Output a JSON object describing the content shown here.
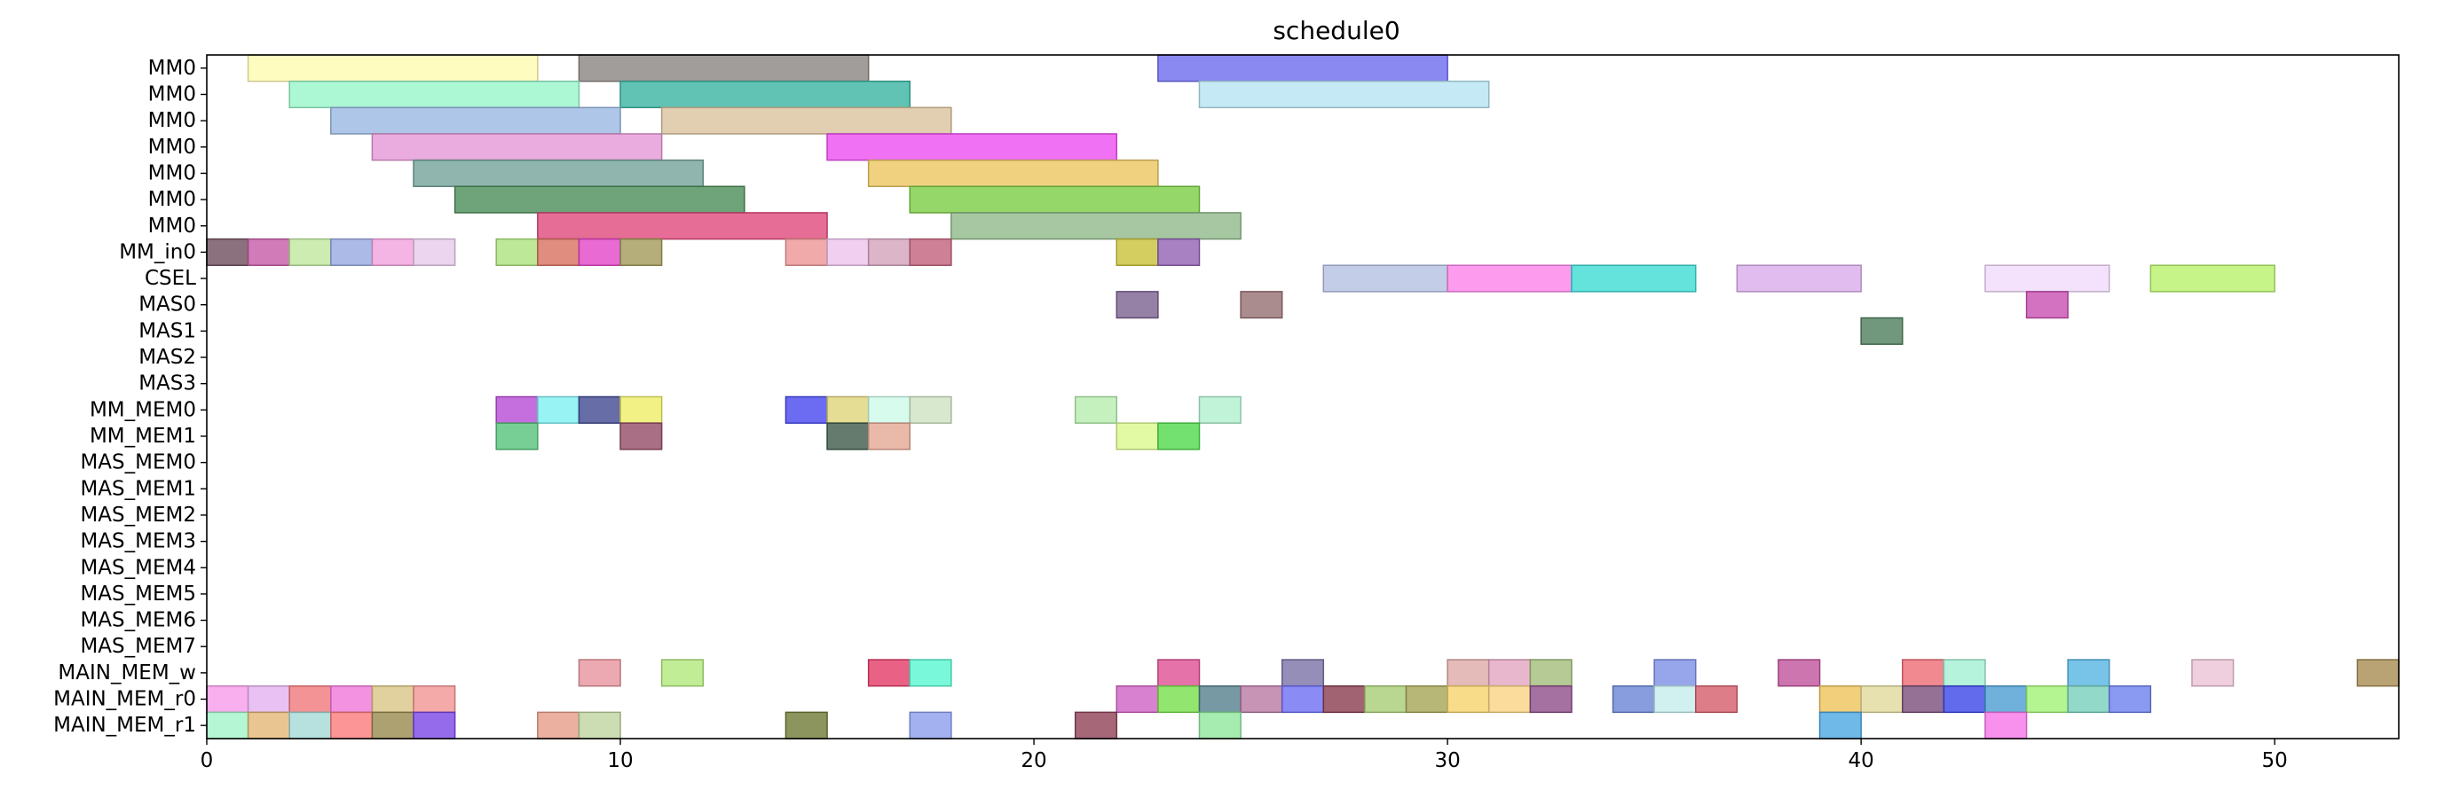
{
  "chart_data": {
    "type": "gantt",
    "title": "schedule0",
    "xlabel": "",
    "ylabel": "",
    "xlim": [
      0,
      53
    ],
    "x_ticks": [
      0,
      10,
      20,
      30,
      40,
      50
    ],
    "grid": false,
    "rows": [
      "MM0",
      "MM0",
      "MM0",
      "MM0",
      "MM0",
      "MM0",
      "MM0",
      "MM_in0",
      "CSEL",
      "MAS0",
      "MAS1",
      "MAS2",
      "MAS3",
      "MM_MEM0",
      "MM_MEM1",
      "MAS_MEM0",
      "MAS_MEM1",
      "MAS_MEM2",
      "MAS_MEM3",
      "MAS_MEM4",
      "MAS_MEM5",
      "MAS_MEM6",
      "MAS_MEM7",
      "MAIN_MEM_w",
      "MAIN_MEM_r0",
      "MAIN_MEM_r1"
    ],
    "bars": [
      {
        "row": 0,
        "start": 1,
        "end": 8,
        "color": "#fffbb0"
      },
      {
        "row": 0,
        "start": 9,
        "end": 16,
        "color": "#8a8582"
      },
      {
        "row": 0,
        "start": 23,
        "end": 30,
        "color": "#6b6bee"
      },
      {
        "row": 1,
        "start": 2,
        "end": 9,
        "color": "#97f5c9"
      },
      {
        "row": 1,
        "start": 10,
        "end": 17,
        "color": "#3ab4a0"
      },
      {
        "row": 1,
        "start": 24,
        "end": 31,
        "color": "#b8e5f3"
      },
      {
        "row": 2,
        "start": 3,
        "end": 10,
        "color": "#9ab8e1"
      },
      {
        "row": 2,
        "start": 11,
        "end": 18,
        "color": "#dbc29d"
      },
      {
        "row": 3,
        "start": 4,
        "end": 11,
        "color": "#e597d7"
      },
      {
        "row": 3,
        "start": 15,
        "end": 22,
        "color": "#ee4df3"
      },
      {
        "row": 4,
        "start": 5,
        "end": 12,
        "color": "#73a39a"
      },
      {
        "row": 4,
        "start": 16,
        "end": 23,
        "color": "#ebc560"
      },
      {
        "row": 5,
        "start": 6,
        "end": 13,
        "color": "#4b8c58"
      },
      {
        "row": 5,
        "start": 17,
        "end": 24,
        "color": "#7ccd43"
      },
      {
        "row": 6,
        "start": 8,
        "end": 15,
        "color": "#e0487a"
      },
      {
        "row": 6,
        "start": 18,
        "end": 25,
        "color": "#90b98a"
      },
      {
        "row": 7,
        "start": 0,
        "end": 1,
        "color": "#6e4e5e"
      },
      {
        "row": 7,
        "start": 1,
        "end": 2,
        "color": "#c55aa6"
      },
      {
        "row": 7,
        "start": 2,
        "end": 3,
        "color": "#bfe79d"
      },
      {
        "row": 7,
        "start": 3,
        "end": 4,
        "color": "#97a9e1"
      },
      {
        "row": 7,
        "start": 4,
        "end": 5,
        "color": "#f3a3dd"
      },
      {
        "row": 7,
        "start": 5,
        "end": 6,
        "color": "#e7cbea"
      },
      {
        "row": 7,
        "start": 7,
        "end": 8,
        "color": "#abe27d"
      },
      {
        "row": 7,
        "start": 8,
        "end": 9,
        "color": "#d87060"
      },
      {
        "row": 7,
        "start": 9,
        "end": 10,
        "color": "#e545c9"
      },
      {
        "row": 7,
        "start": 10,
        "end": 11,
        "color": "#a29a59"
      },
      {
        "row": 7,
        "start": 14,
        "end": 15,
        "color": "#ee9595"
      },
      {
        "row": 7,
        "start": 15,
        "end": 16,
        "color": "#ecc3ee"
      },
      {
        "row": 7,
        "start": 16,
        "end": 17,
        "color": "#d5a3bb"
      },
      {
        "row": 7,
        "start": 17,
        "end": 18,
        "color": "#c2627c"
      },
      {
        "row": 7,
        "start": 22,
        "end": 23,
        "color": "#c9c23a"
      },
      {
        "row": 7,
        "start": 23,
        "end": 24,
        "color": "#9161b3"
      },
      {
        "row": 8,
        "start": 27,
        "end": 30,
        "color": "#b5c1e1"
      },
      {
        "row": 8,
        "start": 30,
        "end": 33,
        "color": "#fd83ea"
      },
      {
        "row": 8,
        "start": 33,
        "end": 36,
        "color": "#3ddcd5"
      },
      {
        "row": 8,
        "start": 37,
        "end": 40,
        "color": "#d9adeb"
      },
      {
        "row": 8,
        "start": 43,
        "end": 46,
        "color": "#f1dafa"
      },
      {
        "row": 8,
        "start": 47,
        "end": 50,
        "color": "#b8f16b"
      },
      {
        "row": 9,
        "start": 22,
        "end": 23,
        "color": "#7b6090"
      },
      {
        "row": 9,
        "start": 25,
        "end": 26,
        "color": "#966f72"
      },
      {
        "row": 9,
        "start": 44,
        "end": 45,
        "color": "#c94fb3"
      },
      {
        "row": 10,
        "start": 40,
        "end": 41,
        "color": "#4e7e5c"
      },
      {
        "row": 13,
        "start": 7,
        "end": 8,
        "color": "#b74ad6"
      },
      {
        "row": 13,
        "start": 8,
        "end": 9,
        "color": "#7ef0f1"
      },
      {
        "row": 13,
        "start": 9,
        "end": 10,
        "color": "#414891"
      },
      {
        "row": 13,
        "start": 10,
        "end": 11,
        "color": "#eeee67"
      },
      {
        "row": 13,
        "start": 14,
        "end": 15,
        "color": "#4647ef"
      },
      {
        "row": 13,
        "start": 15,
        "end": 16,
        "color": "#e0d57a"
      },
      {
        "row": 13,
        "start": 16,
        "end": 17,
        "color": "#cdfbe8"
      },
      {
        "row": 13,
        "start": 17,
        "end": 18,
        "color": "#cde2c3"
      },
      {
        "row": 13,
        "start": 21,
        "end": 22,
        "color": "#b5eead"
      },
      {
        "row": 13,
        "start": 24,
        "end": 25,
        "color": "#b1f0ce"
      },
      {
        "row": 14,
        "start": 7,
        "end": 8,
        "color": "#55c37a"
      },
      {
        "row": 14,
        "start": 10,
        "end": 11,
        "color": "#944b66"
      },
      {
        "row": 14,
        "start": 15,
        "end": 16,
        "color": "#3f5a4a"
      },
      {
        "row": 14,
        "start": 16,
        "end": 17,
        "color": "#e3a795"
      },
      {
        "row": 14,
        "start": 22,
        "end": 23,
        "color": "#dbf98c"
      },
      {
        "row": 14,
        "start": 23,
        "end": 24,
        "color": "#4fd94b"
      },
      {
        "row": 23,
        "start": 9,
        "end": 10,
        "color": "#e7939d"
      },
      {
        "row": 23,
        "start": 11,
        "end": 12,
        "color": "#b2e87c"
      },
      {
        "row": 23,
        "start": 16,
        "end": 17,
        "color": "#e33b67"
      },
      {
        "row": 23,
        "start": 17,
        "end": 18,
        "color": "#59f7d1"
      },
      {
        "row": 23,
        "start": 23,
        "end": 24,
        "color": "#df4f94"
      },
      {
        "row": 23,
        "start": 26,
        "end": 27,
        "color": "#7a72a6"
      },
      {
        "row": 23,
        "start": 30,
        "end": 31,
        "color": "#ddaaa6"
      },
      {
        "row": 23,
        "start": 31,
        "end": 32,
        "color": "#e4a5c0"
      },
      {
        "row": 23,
        "start": 32,
        "end": 33,
        "color": "#a3bd7a"
      },
      {
        "row": 23,
        "start": 35,
        "end": 36,
        "color": "#7d90e6"
      },
      {
        "row": 23,
        "start": 38,
        "end": 39,
        "color": "#c0529b"
      },
      {
        "row": 23,
        "start": 41,
        "end": 42,
        "color": "#ee6c74"
      },
      {
        "row": 23,
        "start": 42,
        "end": 43,
        "color": "#a3f0d5"
      },
      {
        "row": 23,
        "start": 45,
        "end": 46,
        "color": "#56b4e2"
      },
      {
        "row": 23,
        "start": 48,
        "end": 49,
        "color": "#ebc2d6"
      },
      {
        "row": 23,
        "start": 52,
        "end": 53,
        "color": "#a88c52"
      },
      {
        "row": 24,
        "start": 0,
        "end": 1,
        "color": "#f79ae9"
      },
      {
        "row": 24,
        "start": 1,
        "end": 2,
        "color": "#e3b1ef"
      },
      {
        "row": 24,
        "start": 2,
        "end": 3,
        "color": "#f0787a"
      },
      {
        "row": 24,
        "start": 3,
        "end": 4,
        "color": "#ef77d8"
      },
      {
        "row": 24,
        "start": 4,
        "end": 5,
        "color": "#d9c586"
      },
      {
        "row": 24,
        "start": 5,
        "end": 6,
        "color": "#f19593"
      },
      {
        "row": 24,
        "start": 22,
        "end": 23,
        "color": "#d062c6"
      },
      {
        "row": 24,
        "start": 23,
        "end": 24,
        "color": "#77e04b"
      },
      {
        "row": 24,
        "start": 24,
        "end": 25,
        "color": "#547f8c"
      },
      {
        "row": 24,
        "start": 25,
        "end": 26,
        "color": "#b979a2"
      },
      {
        "row": 24,
        "start": 26,
        "end": 27,
        "color": "#6d6ef2"
      },
      {
        "row": 24,
        "start": 27,
        "end": 28,
        "color": "#8a3c4d"
      },
      {
        "row": 24,
        "start": 28,
        "end": 29,
        "color": "#a9cd76"
      },
      {
        "row": 24,
        "start": 29,
        "end": 30,
        "color": "#a5a656"
      },
      {
        "row": 24,
        "start": 30,
        "end": 31,
        "color": "#f8d36d"
      },
      {
        "row": 24,
        "start": 31,
        "end": 32,
        "color": "#fbd383"
      },
      {
        "row": 24,
        "start": 32,
        "end": 33,
        "color": "#8e4e8a"
      },
      {
        "row": 24,
        "start": 34,
        "end": 35,
        "color": "#6984d4"
      },
      {
        "row": 24,
        "start": 35,
        "end": 36,
        "color": "#c5eeed"
      },
      {
        "row": 24,
        "start": 36,
        "end": 37,
        "color": "#d55d6a"
      },
      {
        "row": 24,
        "start": 39,
        "end": 40,
        "color": "#eec35a"
      },
      {
        "row": 24,
        "start": 40,
        "end": 41,
        "color": "#e1d99c"
      },
      {
        "row": 24,
        "start": 41,
        "end": 42,
        "color": "#7b4d7a"
      },
      {
        "row": 24,
        "start": 42,
        "end": 43,
        "color": "#3a46e7"
      },
      {
        "row": 24,
        "start": 43,
        "end": 44,
        "color": "#4b9ed2"
      },
      {
        "row": 24,
        "start": 44,
        "end": 45,
        "color": "#a3f276"
      },
      {
        "row": 24,
        "start": 45,
        "end": 46,
        "color": "#78d0bb"
      },
      {
        "row": 24,
        "start": 46,
        "end": 47,
        "color": "#6d7fef"
      },
      {
        "row": 25,
        "start": 0,
        "end": 1,
        "color": "#a2f5c9"
      },
      {
        "row": 25,
        "start": 1,
        "end": 2,
        "color": "#e4b876"
      },
      {
        "row": 25,
        "start": 2,
        "end": 3,
        "color": "#a4d9d6"
      },
      {
        "row": 25,
        "start": 3,
        "end": 4,
        "color": "#fb7a7a"
      },
      {
        "row": 25,
        "start": 4,
        "end": 5,
        "color": "#9a8a4e"
      },
      {
        "row": 25,
        "start": 5,
        "end": 6,
        "color": "#7c46e6"
      },
      {
        "row": 25,
        "start": 8,
        "end": 9,
        "color": "#e69c88"
      },
      {
        "row": 25,
        "start": 9,
        "end": 10,
        "color": "#bfd4a1"
      },
      {
        "row": 25,
        "start": 14,
        "end": 15,
        "color": "#717b36"
      },
      {
        "row": 25,
        "start": 17,
        "end": 18,
        "color": "#8c9eee"
      },
      {
        "row": 25,
        "start": 21,
        "end": 22,
        "color": "#904158"
      },
      {
        "row": 25,
        "start": 24,
        "end": 25,
        "color": "#90e69c"
      },
      {
        "row": 25,
        "start": 39,
        "end": 40,
        "color": "#4ba8e2"
      },
      {
        "row": 25,
        "start": 43,
        "end": 44,
        "color": "#f576e9"
      }
    ]
  }
}
